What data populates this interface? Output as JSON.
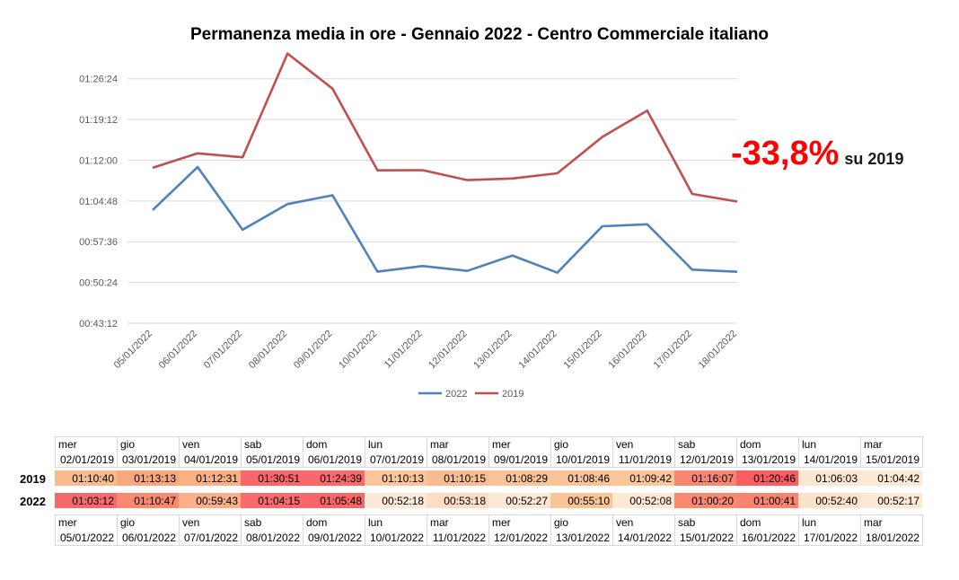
{
  "chart_data": {
    "type": "line",
    "title": "Permanenza media in ore - Gennaio 2022 - Centro Commerciale italiano",
    "categories": [
      "05/01/2022",
      "06/01/2022",
      "07/01/2022",
      "08/01/2022",
      "09/01/2022",
      "10/01/2022",
      "11/01/2022",
      "12/01/2022",
      "13/01/2022",
      "14/01/2022",
      "15/01/2022",
      "16/01/2022",
      "17/01/2022",
      "18/01/2022"
    ],
    "y_ticks": [
      "00:43:12",
      "00:50:24",
      "00:57:36",
      "01:04:48",
      "01:12:00",
      "01:19:12",
      "01:26:24"
    ],
    "ylim": [
      "00:43:12",
      "01:30:00"
    ],
    "grid": "horizontal",
    "legend_position": "bottom",
    "series": [
      {
        "name": "2022",
        "color": "#4f81bd",
        "values": [
          "01:03:12",
          "01:10:47",
          "00:59:43",
          "01:04:15",
          "01:05:48",
          "00:52:18",
          "00:53:18",
          "00:52:27",
          "00:55:10",
          "00:52:08",
          "01:00:20",
          "01:00:41",
          "00:52:40",
          "00:52:17"
        ]
      },
      {
        "name": "2019",
        "color": "#c0504d",
        "values": [
          "01:10:40",
          "01:13:13",
          "01:12:31",
          "01:30:51",
          "01:24:39",
          "01:10:13",
          "01:10:15",
          "01:08:29",
          "01:08:46",
          "01:09:42",
          "01:16:07",
          "01:20:46",
          "01:06:03",
          "01:04:42"
        ]
      }
    ]
  },
  "annotation": {
    "value": "-33,8%",
    "suffix": "su 2019",
    "color": "#ff0000"
  },
  "table": {
    "label_2019": "2019",
    "label_2022": "2022",
    "days_2019": [
      "mer",
      "gio",
      "ven",
      "sab",
      "dom",
      "lun",
      "mar",
      "mer",
      "gio",
      "ven",
      "sab",
      "dom",
      "lun",
      "mar"
    ],
    "dates_2019": [
      "02/01/2019",
      "03/01/2019",
      "04/01/2019",
      "05/01/2019",
      "06/01/2019",
      "07/01/2019",
      "08/01/2019",
      "09/01/2019",
      "10/01/2019",
      "11/01/2019",
      "12/01/2019",
      "13/01/2019",
      "14/01/2019",
      "15/01/2019"
    ],
    "values_2019": [
      "01:10:40",
      "01:13:13",
      "01:12:31",
      "01:30:51",
      "01:24:39",
      "01:10:13",
      "01:10:15",
      "01:08:29",
      "01:08:46",
      "01:09:42",
      "01:16:07",
      "01:20:46",
      "01:06:03",
      "01:04:42"
    ],
    "colors_2019": [
      "#f9bb8e",
      "#f9a87d",
      "#f9b184",
      "#f9676a",
      "#fa686b",
      "#fbc49a",
      "#f9bc91",
      "#f9c398",
      "#f9c398",
      "#fcc69b",
      "#f98573",
      "#f95d62",
      "#fde7d3",
      "#fde9d5"
    ],
    "values_2022": [
      "01:03:12",
      "01:10:47",
      "00:59:43",
      "01:04:15",
      "01:05:48",
      "00:52:18",
      "00:53:18",
      "00:52:27",
      "00:55:10",
      "00:52:08",
      "01:00:20",
      "01:00:41",
      "00:52:40",
      "00:52:17"
    ],
    "colors_2022": [
      "#f8696b",
      "#f9896f",
      "#fbb08a",
      "#f96a6c",
      "#f86668",
      "#fde9d7",
      "#fddec5",
      "#fde8d6",
      "#fbc494",
      "#fde8d4",
      "#f98a70",
      "#f98570",
      "#fde1c9",
      "#fde8d4"
    ],
    "days_2022": [
      "mer",
      "gio",
      "ven",
      "sab",
      "dom",
      "lun",
      "mar",
      "mer",
      "gio",
      "ven",
      "sab",
      "dom",
      "lun",
      "mar"
    ],
    "dates_2022": [
      "05/01/2022",
      "06/01/2022",
      "07/01/2022",
      "08/01/2022",
      "09/01/2022",
      "10/01/2022",
      "11/01/2022",
      "12/01/2022",
      "13/01/2022",
      "14/01/2022",
      "15/01/2022",
      "16/01/2022",
      "17/01/2022",
      "18/01/2022"
    ]
  }
}
